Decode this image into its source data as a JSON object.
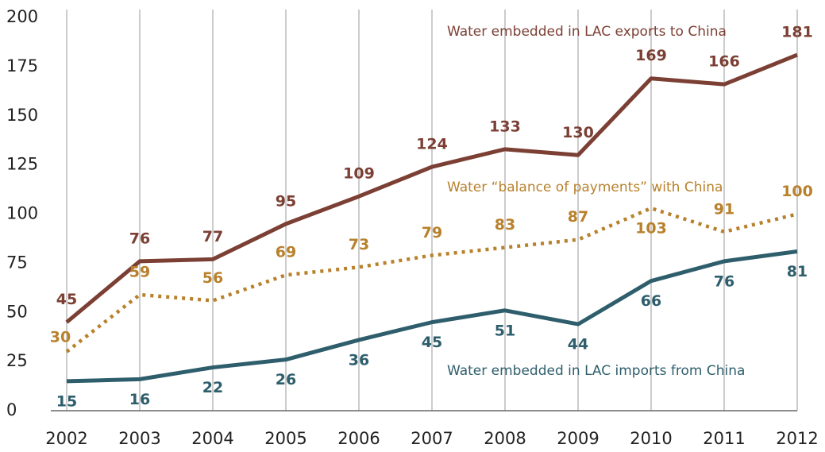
{
  "chart_data": {
    "type": "line",
    "x": [
      2002,
      2003,
      2004,
      2005,
      2006,
      2007,
      2008,
      2009,
      2010,
      2011,
      2012
    ],
    "xlim": [
      2002,
      2012
    ],
    "xticks": [
      2002,
      2003,
      2004,
      2005,
      2006,
      2007,
      2008,
      2009,
      2010,
      2011,
      2012
    ],
    "ylim": [
      0,
      200
    ],
    "yticks": [
      0,
      25,
      50,
      75,
      100,
      125,
      150,
      175,
      200
    ],
    "grid": true,
    "series": [
      {
        "name": "Water embedded in LAC exports to China",
        "color": "#7b3f34",
        "dash": "solid",
        "values": [
          45,
          76,
          77,
          95,
          109,
          124,
          133,
          130,
          169,
          166,
          181
        ]
      },
      {
        "name": "Water “balance of payments” with China",
        "color": "#b8812c",
        "dash": "dotted",
        "values": [
          30,
          59,
          56,
          69,
          73,
          79,
          83,
          87,
          103,
          91,
          100
        ]
      },
      {
        "name": "Water embedded in LAC imports from China",
        "color": "#2e5e6c",
        "dash": "solid",
        "values": [
          15,
          16,
          22,
          26,
          36,
          45,
          51,
          44,
          66,
          76,
          81
        ]
      }
    ]
  }
}
